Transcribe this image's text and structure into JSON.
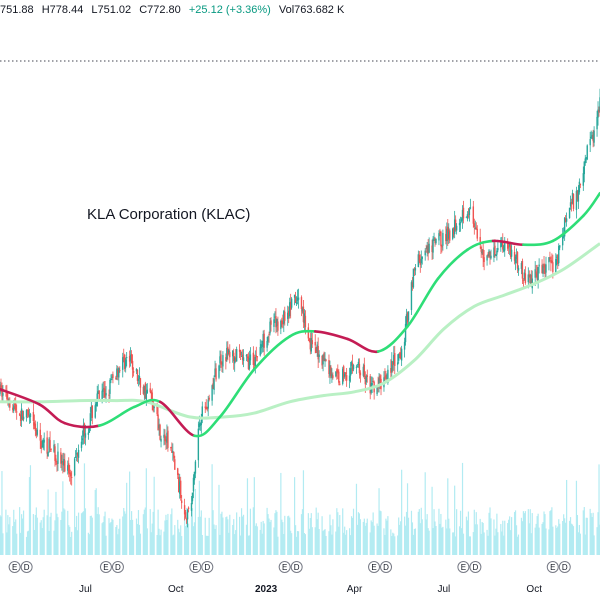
{
  "header": {
    "open": "751.88",
    "high": "H778.44",
    "low": "L751.02",
    "close": "C772.80",
    "change": "+25.12 (+3.36%)",
    "volume": "Vol763.682 K"
  },
  "chart_data": {
    "type": "candlestick",
    "title": "KLA Corporation (KLAC)",
    "x_ticks": [
      {
        "label": "Jul",
        "date": "2022-07-01"
      },
      {
        "label": "Oct",
        "date": "2022-10-01"
      },
      {
        "label": "2023",
        "date": "2023-01-01"
      },
      {
        "label": "Apr",
        "date": "2023-04-01"
      },
      {
        "label": "Jul",
        "date": "2023-07-01"
      },
      {
        "label": "Oct",
        "date": "2023-10-01"
      }
    ],
    "x_range": [
      "2022-04-05",
      "2023-12-07"
    ],
    "y_range": [
      250,
      620
    ],
    "price_anchors": [
      [
        "2022-04-05",
        360
      ],
      [
        "2022-05-01",
        340
      ],
      [
        "2022-05-20",
        318
      ],
      [
        "2022-06-16",
        298
      ],
      [
        "2022-06-30",
        330
      ],
      [
        "2022-07-15",
        355
      ],
      [
        "2022-08-12",
        385
      ],
      [
        "2022-09-02",
        360
      ],
      [
        "2022-09-20",
        322
      ],
      [
        "2022-10-14",
        264
      ],
      [
        "2022-10-28",
        345
      ],
      [
        "2022-11-20",
        390
      ],
      [
        "2022-12-15",
        384
      ],
      [
        "2023-01-10",
        413
      ],
      [
        "2023-02-02",
        432
      ],
      [
        "2023-02-20",
        392
      ],
      [
        "2023-03-15",
        372
      ],
      [
        "2023-04-03",
        380
      ],
      [
        "2023-04-20",
        362
      ],
      [
        "2023-05-15",
        384
      ],
      [
        "2023-06-05",
        465
      ],
      [
        "2023-06-30",
        482
      ],
      [
        "2023-07-25",
        505
      ],
      [
        "2023-08-10",
        468
      ],
      [
        "2023-09-01",
        478
      ],
      [
        "2023-09-25",
        450
      ],
      [
        "2023-10-20",
        462
      ],
      [
        "2023-11-10",
        512
      ],
      [
        "2023-11-28",
        560
      ],
      [
        "2023-12-07",
        590
      ]
    ],
    "series": [
      {
        "name": "",
        "type": "moving_average",
        "color_up": "#2ede77",
        "color_down": "#c41c54",
        "points": [
          [
            "2022-04-05",
            362
          ],
          [
            "2022-05-15",
            350
          ],
          [
            "2022-06-10",
            335
          ],
          [
            "2022-07-15",
            333
          ],
          [
            "2022-08-20",
            348
          ],
          [
            "2022-09-15",
            352
          ],
          [
            "2022-10-20",
            325
          ],
          [
            "2022-11-15",
            340
          ],
          [
            "2022-12-20",
            378
          ],
          [
            "2023-01-25",
            404
          ],
          [
            "2023-02-20",
            408
          ],
          [
            "2023-03-25",
            402
          ],
          [
            "2023-04-25",
            392
          ],
          [
            "2023-05-25",
            412
          ],
          [
            "2023-06-25",
            450
          ],
          [
            "2023-07-25",
            473
          ],
          [
            "2023-08-20",
            480
          ],
          [
            "2023-09-20",
            477
          ],
          [
            "2023-10-20",
            480
          ],
          [
            "2023-11-20",
            500
          ],
          [
            "2023-12-07",
            518
          ]
        ]
      },
      {
        "name": "",
        "type": "moving_average",
        "color": "#b9f0c4",
        "points": [
          [
            "2022-04-05",
            352
          ],
          [
            "2022-05-20",
            352
          ],
          [
            "2022-06-25",
            353
          ],
          [
            "2022-08-01",
            353
          ],
          [
            "2022-09-01",
            352
          ],
          [
            "2022-10-15",
            340
          ],
          [
            "2022-11-20",
            340
          ],
          [
            "2022-12-20",
            343
          ],
          [
            "2023-01-25",
            352
          ],
          [
            "2023-03-01",
            357
          ],
          [
            "2023-04-01",
            360
          ],
          [
            "2023-05-01",
            367
          ],
          [
            "2023-06-01",
            385
          ],
          [
            "2023-07-01",
            410
          ],
          [
            "2023-08-01",
            428
          ],
          [
            "2023-09-01",
            437
          ],
          [
            "2023-10-01",
            446
          ],
          [
            "2023-11-01",
            458
          ],
          [
            "2023-12-07",
            478
          ]
        ]
      }
    ],
    "earnings_markers": [
      {
        "date": "2022-04-26",
        "labels": [
          "E",
          "D"
        ]
      },
      {
        "date": "2022-07-28",
        "labels": [
          "E",
          "D"
        ]
      },
      {
        "date": "2022-10-27",
        "labels": [
          "E",
          "D"
        ]
      },
      {
        "date": "2023-01-26",
        "labels": [
          "E",
          "D"
        ]
      },
      {
        "date": "2023-04-27",
        "labels": [
          "E",
          "D"
        ]
      },
      {
        "date": "2023-07-27",
        "labels": [
          "E",
          "D"
        ]
      },
      {
        "date": "2023-10-26",
        "labels": [
          "E",
          "D"
        ]
      }
    ],
    "colors": {
      "up_candle": "#26a69a",
      "down_candle": "#ef5350",
      "volume": "#b2ebf2",
      "dotted_line": "#434651"
    },
    "price_line_dotted": true,
    "grid": false
  }
}
